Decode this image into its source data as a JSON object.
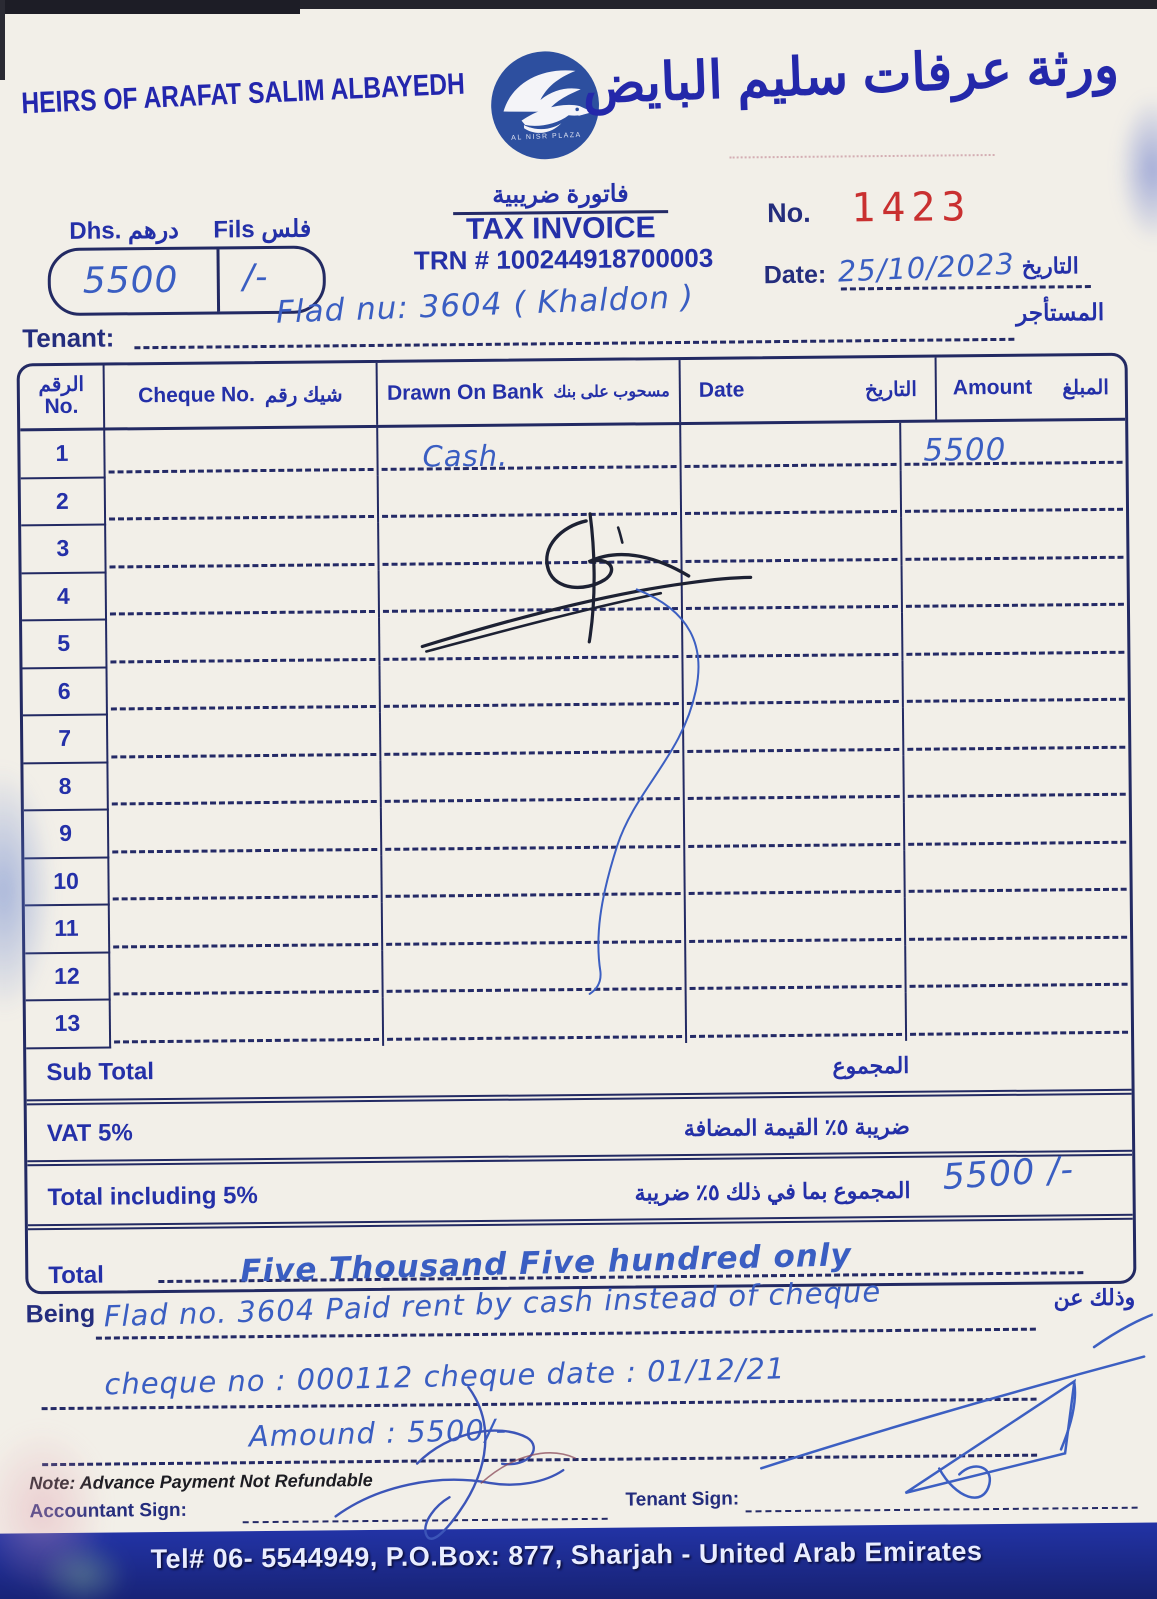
{
  "header": {
    "company_en": "HEIRS OF ARAFAT SALIM ALBAYEDH",
    "company_ar": "ورثة عرفات سليم البايض",
    "logo_name": "AL NISR PLAZA"
  },
  "invoice_meta": {
    "title_ar": "فاتورة ضريبية",
    "title_en": "TAX INVOICE",
    "trn": "TRN # 100244918700003",
    "no_label": "No.",
    "no_value": "1423",
    "date_label": "Date:",
    "date_value": "25/10/2023",
    "date_label_ar": "التاريخ"
  },
  "amount_box": {
    "dhs_label": "Dhs. درهم",
    "fils_label": "Fils فلس",
    "dhs_value": "5500",
    "fils_value": "/-"
  },
  "tenant": {
    "label_en": "Tenant:",
    "label_ar": "المستأجر",
    "value": "Flad nu: 3604 ( Khaldon )"
  },
  "table": {
    "headers": {
      "no_ar": "الرقم",
      "no_en": "No.",
      "cheque_en": "Cheque No.",
      "cheque_ar": "شيك رقم",
      "bank_en": "Drawn On Bank",
      "bank_ar": "مسحوب على بنك",
      "date_en": "Date",
      "date_ar": "التاريخ",
      "amount_en": "Amount",
      "amount_ar": "المبلغ"
    },
    "rows": [
      {
        "no": "1",
        "cheque": "",
        "bank": "Cash.",
        "date": "",
        "amount": "5500"
      },
      {
        "no": "2",
        "cheque": "",
        "bank": "",
        "date": "",
        "amount": ""
      },
      {
        "no": "3",
        "cheque": "",
        "bank": "",
        "date": "",
        "amount": ""
      },
      {
        "no": "4",
        "cheque": "",
        "bank": "",
        "date": "",
        "amount": ""
      },
      {
        "no": "5",
        "cheque": "",
        "bank": "",
        "date": "",
        "amount": ""
      },
      {
        "no": "6",
        "cheque": "",
        "bank": "",
        "date": "",
        "amount": ""
      },
      {
        "no": "7",
        "cheque": "",
        "bank": "",
        "date": "",
        "amount": ""
      },
      {
        "no": "8",
        "cheque": "",
        "bank": "",
        "date": "",
        "amount": ""
      },
      {
        "no": "9",
        "cheque": "",
        "bank": "",
        "date": "",
        "amount": ""
      },
      {
        "no": "10",
        "cheque": "",
        "bank": "",
        "date": "",
        "amount": ""
      },
      {
        "no": "11",
        "cheque": "",
        "bank": "",
        "date": "",
        "amount": ""
      },
      {
        "no": "12",
        "cheque": "",
        "bank": "",
        "date": "",
        "amount": ""
      },
      {
        "no": "13",
        "cheque": "",
        "bank": "",
        "date": "",
        "amount": ""
      }
    ]
  },
  "totals": {
    "sub_total_en": "Sub Total",
    "sub_total_ar": "المجموع",
    "vat_en": "VAT 5%",
    "vat_ar": "ضريبة ٥٪ القيمة المضافة",
    "total_incl_en": "Total including 5%",
    "total_incl_ar": "المجموع بما في ذلك ٥٪ ضريبة",
    "total_incl_value": "5500 /-",
    "total_label": "Total",
    "total_in_words": "Five Thousand Five hundred only"
  },
  "being": {
    "label_en": "Being",
    "label_ar": "وذلك عن",
    "line1": "Flad no. 3604  Paid rent by cash instead of cheque",
    "line2": "cheque no : 000112   cheque date : 01/12/21",
    "line3": "Amound :  5500/-"
  },
  "note": "Note: Advance Payment Not Refundable",
  "signatures": {
    "accountant_label": "Accountant Sign:",
    "tenant_label": "Tenant Sign:"
  },
  "footer": {
    "contact": "Tel# 06- 5544949, P.O.Box: 877, Sharjah - United Arab Emirates"
  },
  "colors": {
    "ink_blue": "#2430a8",
    "border_navy": "#232a63",
    "handwriting_blue": "#3a5ec2",
    "stamp_red": "#c93030",
    "footer_blue": "#1c2c96",
    "logo_blue": "#2d4f9f",
    "paper": "#f2efe8"
  }
}
